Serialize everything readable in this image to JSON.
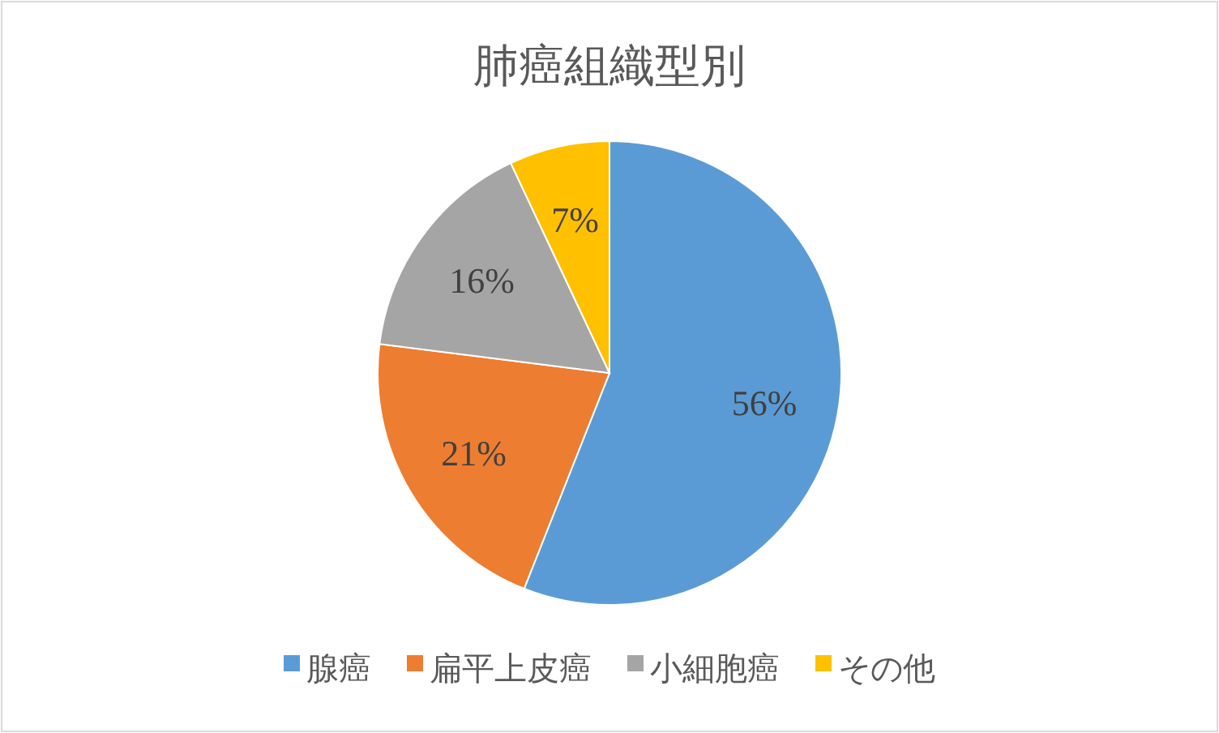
{
  "chart_data": {
    "type": "pie",
    "title": "肺癌組織型別",
    "categories": [
      "腺癌",
      "扁平上皮癌",
      "小細胞癌",
      "その他"
    ],
    "values": [
      56,
      21,
      16,
      7
    ],
    "colors": [
      "#5b9bd5",
      "#ed7d31",
      "#a5a5a5",
      "#ffc000"
    ],
    "value_labels": [
      "56%",
      "21%",
      "16%",
      "7%"
    ],
    "legend": "bottom"
  }
}
